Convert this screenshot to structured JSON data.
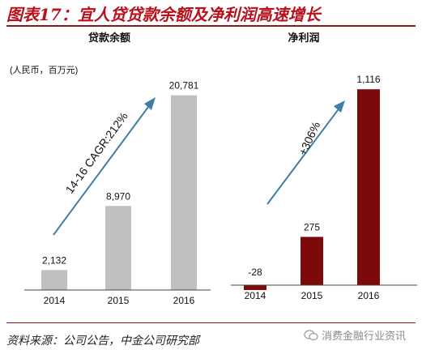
{
  "figure_title": "图表17：宜人贷贷款余额及净利润高速增长",
  "source": "资料来源：公司公告，中金公司研究部",
  "watermark": "消费金融行业资讯",
  "chart_data": [
    {
      "type": "bar",
      "title": "贷款余额",
      "unit_note": "(人民币，百万元)",
      "categories": [
        "2014",
        "2015",
        "2016"
      ],
      "values": [
        2132,
        8970,
        20781
      ],
      "data_labels": [
        "2,132",
        "8,970",
        "20,781"
      ],
      "color": "#c0c0c0",
      "ylim": [
        0,
        23000
      ],
      "annotation": "14-16 CAGR:212%"
    },
    {
      "type": "bar",
      "title": "净利润",
      "categories": [
        "2014",
        "2015",
        "2016"
      ],
      "values": [
        -28,
        275,
        1116
      ],
      "data_labels": [
        "-28",
        "275",
        "1,116"
      ],
      "color": "#7d0a0a",
      "ylim": [
        -50,
        1200
      ],
      "annotation": "+306%"
    }
  ]
}
